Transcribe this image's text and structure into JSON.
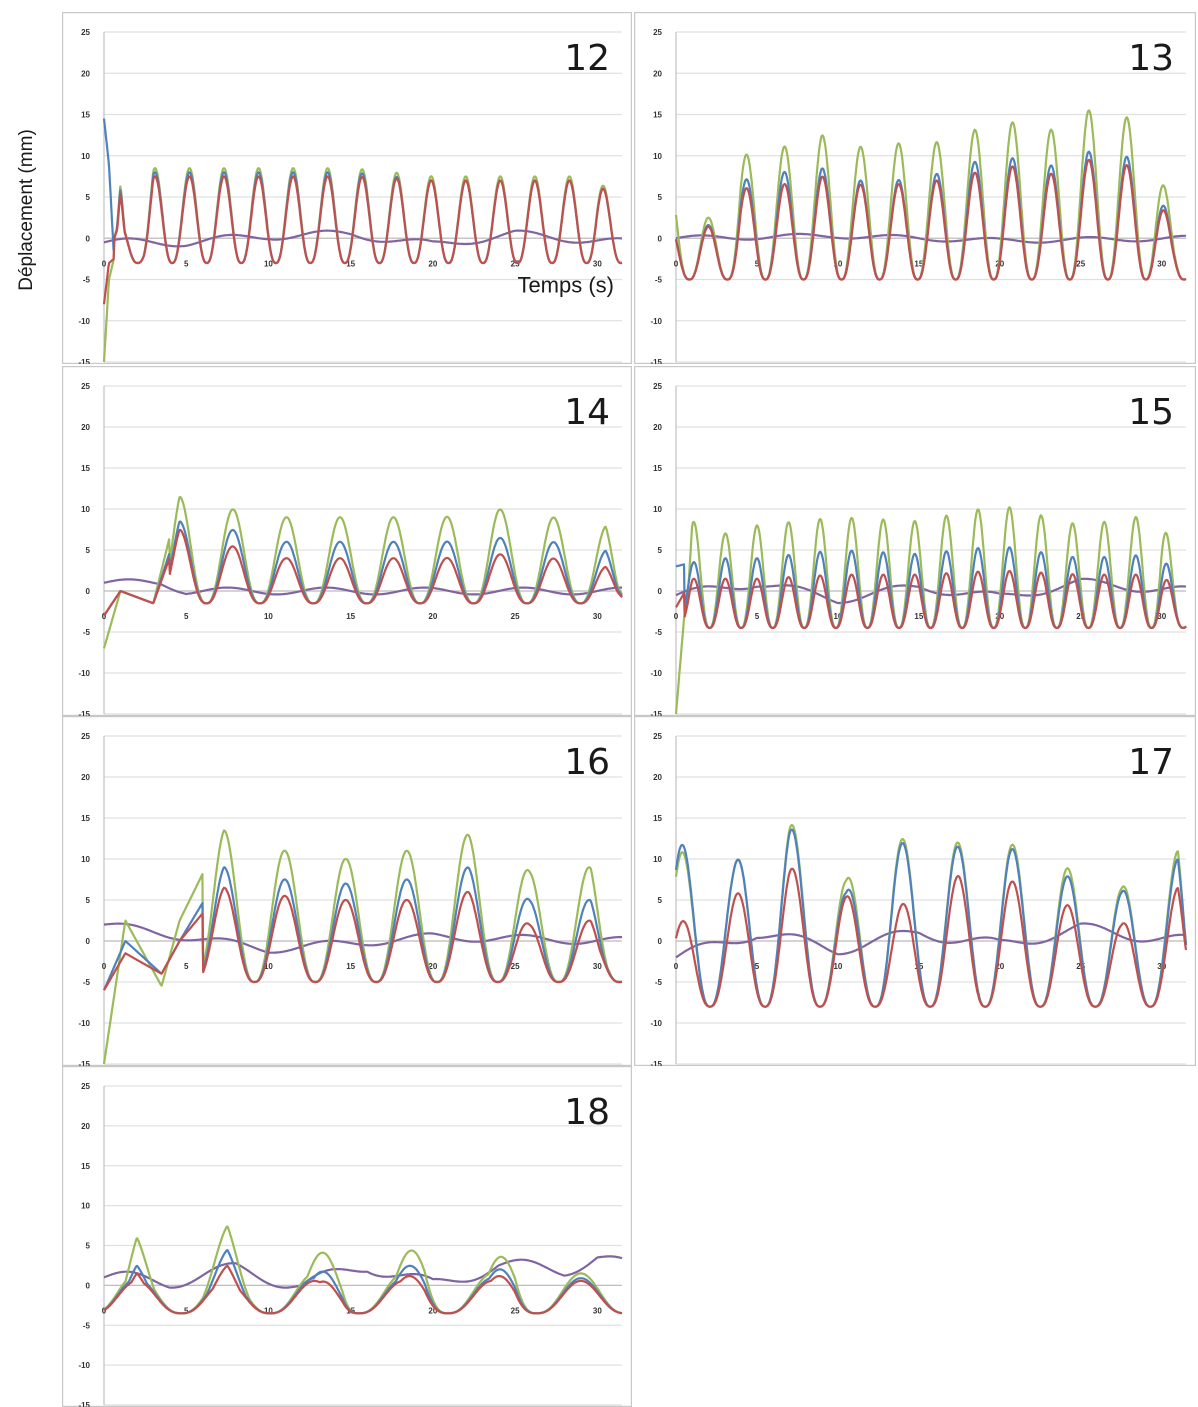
{
  "figure": {
    "ylabel": "Déplacement (mm)",
    "xlabel": "Temps (s)"
  },
  "chart_data": [
    {
      "type": "line",
      "title": "12",
      "xlabel": "Temps (s)",
      "ylabel": "Déplacement (mm)",
      "xlim": [
        0,
        31.5
      ],
      "ylim": [
        -15,
        25
      ],
      "x_ticks": [
        0,
        5,
        10,
        15,
        20,
        25,
        30
      ],
      "y_ticks": [
        -15,
        -10,
        -5,
        0,
        5,
        10,
        15,
        20,
        25
      ],
      "grid": true,
      "legend": "none",
      "signal": {
        "period": 2.1,
        "phase": 1.0,
        "start": 0.6,
        "trough": -3.0,
        "peaks": {
          "blue": 8.0,
          "red": 7.5,
          "green": 8.5
        },
        "purple_amp": 0.8,
        "purple_offset": -0.2
      },
      "series": [
        {
          "color": "#4f81bd",
          "x": [
            0,
            0.3,
            0.6,
            1.0,
            1.5,
            2.0,
            3.0,
            5.0,
            10.0,
            15.0,
            20.0,
            25.0,
            30.0,
            31.5
          ],
          "values": [
            14.5,
            9.0,
            -2.0,
            6.0,
            -2.5,
            -3.0,
            8.0,
            8.0,
            8.0,
            8.0,
            7.0,
            7.0,
            7.0,
            3.0
          ]
        },
        {
          "color": "#c0504d",
          "x": [
            0,
            0.3,
            0.6,
            1.0,
            1.5,
            2.0,
            3.0,
            5.0,
            10.0,
            15.0,
            20.0,
            25.0,
            30.0,
            31.5
          ],
          "values": [
            -8.0,
            -3.0,
            -2.5,
            5.5,
            -2.5,
            -3.0,
            7.5,
            7.5,
            7.5,
            7.5,
            7.0,
            7.0,
            7.0,
            3.0
          ]
        },
        {
          "color": "#9bbb59",
          "x": [
            0,
            0.3,
            0.6,
            1.0,
            1.5,
            2.0,
            3.0,
            5.0,
            10.0,
            15.0,
            20.0,
            25.0,
            30.0,
            31.5
          ],
          "values": [
            -15.0,
            -5.0,
            -2.5,
            6.5,
            -2.5,
            -3.0,
            8.5,
            8.5,
            8.5,
            8.5,
            7.5,
            7.5,
            7.5,
            3.0
          ]
        },
        {
          "color": "#8064a2",
          "x": [
            0,
            5,
            10,
            15,
            20,
            25,
            31.5
          ],
          "values": [
            -0.5,
            -0.5,
            0.3,
            0.5,
            -0.8,
            0.5,
            -0.5
          ]
        }
      ]
    },
    {
      "type": "line",
      "title": "13",
      "xlabel": "",
      "ylabel": "Déplacement (mm)",
      "xlim": [
        0,
        31.5
      ],
      "ylim": [
        -15,
        25
      ],
      "x_ticks": [
        0,
        5,
        10,
        15,
        20,
        25,
        30
      ],
      "y_ticks": [
        -15,
        -10,
        -5,
        0,
        5,
        10,
        15,
        20,
        25
      ],
      "grid": true,
      "legend": "none",
      "signal": {
        "period": 2.35,
        "phase": 2.0,
        "start": 0.0,
        "trough": -5.0,
        "peaks": {
          "blue": 8.0,
          "red": 7.0,
          "green": 12.5
        },
        "purple_amp": 0.5,
        "purple_offset": 0.0
      },
      "series": [
        {
          "color": "#4f81bd",
          "x": [
            0,
            2,
            4,
            6.5,
            9,
            11,
            13.5,
            15.5,
            17.5,
            20,
            22.5,
            24.5,
            27,
            29,
            31.5
          ],
          "values": [
            0,
            -5,
            7,
            8,
            8.5,
            7,
            7,
            7.5,
            8.5,
            10.5,
            8,
            10.5,
            10.5,
            9,
            -2
          ]
        },
        {
          "color": "#c0504d",
          "x": [
            0,
            2,
            4,
            6.5,
            9,
            11,
            13.5,
            15.5,
            17.5,
            20,
            22.5,
            24.5,
            27,
            29,
            31.5
          ],
          "values": [
            0,
            -5,
            6,
            6.5,
            7.5,
            6.5,
            6.5,
            7,
            7,
            9.5,
            7,
            9.5,
            9.5,
            8,
            -2
          ]
        },
        {
          "color": "#9bbb59",
          "x": [
            0,
            2,
            4,
            6.5,
            9,
            11,
            13.5,
            15.5,
            17.5,
            20,
            22.5,
            24.5,
            27,
            29,
            31.5
          ],
          "values": [
            5.5,
            -6,
            10,
            11,
            12.5,
            11,
            11.5,
            11.5,
            12,
            15,
            12,
            15.5,
            15.5,
            13.5,
            -2
          ]
        },
        {
          "color": "#8064a2",
          "x": [
            0,
            10,
            20,
            31.5
          ],
          "values": [
            0,
            0.3,
            -0.3,
            0
          ]
        }
      ]
    },
    {
      "type": "line",
      "title": "14",
      "xlabel": "",
      "ylabel": "Déplacement (mm)",
      "xlim": [
        0,
        31.5
      ],
      "ylim": [
        -15,
        25
      ],
      "x_ticks": [
        0,
        5,
        10,
        15,
        20,
        25,
        30
      ],
      "y_ticks": [
        -15,
        -10,
        -5,
        0,
        5,
        10,
        15,
        20,
        25
      ],
      "grid": true,
      "legend": "none",
      "signal": {
        "period": 3.25,
        "phase": 4.6,
        "start": 4.0,
        "trough": -1.5,
        "peaks": {
          "blue": 6.5,
          "red": 4.0,
          "green": 9.5
        },
        "purple_amp": 0.7,
        "purple_offset": 0.3
      },
      "series": [
        {
          "color": "#4f81bd",
          "x": [
            0,
            1,
            3,
            4.6,
            7.7,
            11,
            14.2,
            17.4,
            20.7,
            23.9,
            27.2,
            30.5,
            31.5
          ],
          "values": [
            -3,
            0,
            -1.5,
            8.5,
            7.5,
            6,
            6,
            6,
            6,
            6.5,
            6,
            5,
            0
          ]
        },
        {
          "color": "#c0504d",
          "x": [
            0,
            1,
            3,
            4.6,
            7.7,
            11,
            14.2,
            17.4,
            20.7,
            23.9,
            27.2,
            30.5,
            31.5
          ],
          "values": [
            -3,
            0,
            -1.5,
            7.5,
            5.5,
            4,
            4,
            4,
            4,
            4.5,
            4,
            3,
            0
          ]
        },
        {
          "color": "#9bbb59",
          "x": [
            0,
            1,
            3,
            4.6,
            7.7,
            11,
            14.2,
            17.4,
            20.7,
            23.9,
            27.2,
            30.5,
            31.5
          ],
          "values": [
            -7,
            0,
            -1.5,
            11.5,
            10,
            9,
            9,
            9,
            9,
            10,
            9,
            8,
            0
          ]
        },
        {
          "color": "#8064a2",
          "x": [
            0,
            3.5,
            5,
            15,
            25,
            31.5
          ],
          "values": [
            1,
            1,
            0,
            0,
            0,
            0
          ]
        }
      ]
    },
    {
      "type": "line",
      "title": "15",
      "xlabel": "",
      "ylabel": "Déplacement (mm)",
      "xlim": [
        0,
        31.5
      ],
      "ylim": [
        -15,
        25
      ],
      "x_ticks": [
        0,
        5,
        10,
        15,
        20,
        25,
        30
      ],
      "y_ticks": [
        -15,
        -10,
        -5,
        0,
        5,
        10,
        15,
        20,
        25
      ],
      "grid": true,
      "legend": "none",
      "signal": {
        "period": 1.95,
        "phase": 1.1,
        "start": 0.5,
        "trough": -4.5,
        "peaks": {
          "blue": 4.0,
          "red": 1.8,
          "green": 8.5
        },
        "purple_amp": 0.9,
        "purple_offset": 0.1
      },
      "series": [
        {
          "color": "#4f81bd",
          "x": [
            0,
            1,
            3,
            5,
            10,
            15,
            20,
            25,
            30,
            31.5
          ],
          "values": [
            3,
            3.5,
            4,
            4,
            5,
            4.5,
            5.5,
            4,
            4.5,
            -1
          ]
        },
        {
          "color": "#c0504d",
          "x": [
            0,
            1,
            3,
            5,
            10,
            15,
            20,
            25,
            30,
            31.5
          ],
          "values": [
            -2,
            1.5,
            1.5,
            1.5,
            2,
            2,
            2.5,
            2,
            2,
            -1
          ]
        },
        {
          "color": "#9bbb59",
          "x": [
            0,
            1,
            3,
            5,
            10,
            15,
            20,
            25,
            30,
            31.5
          ],
          "values": [
            -15,
            8.5,
            7,
            8,
            9,
            8.5,
            10.5,
            8,
            9.5,
            -2.5
          ]
        },
        {
          "color": "#8064a2",
          "x": [
            0,
            5,
            10,
            15,
            20,
            25,
            31.5
          ],
          "values": [
            -0.5,
            1,
            -1,
            0.5,
            -0.8,
            1,
            0
          ]
        }
      ]
    },
    {
      "type": "line",
      "title": "16",
      "xlabel": "",
      "ylabel": "Déplacement (mm)",
      "xlim": [
        0,
        31.5
      ],
      "ylim": [
        -15,
        25
      ],
      "x_ticks": [
        0,
        5,
        10,
        15,
        20,
        25,
        30
      ],
      "y_ticks": [
        -15,
        -10,
        -5,
        0,
        5,
        10,
        15,
        20,
        25
      ],
      "grid": true,
      "legend": "none",
      "signal": {
        "period": 3.7,
        "phase": 7.3,
        "start": 6.0,
        "trough": -5.0,
        "peaks": {
          "blue": 7.5,
          "red": 4.5,
          "green": 11.0
        },
        "purple_amp": 0.8,
        "purple_offset": 0.0
      },
      "series": [
        {
          "color": "#4f81bd",
          "x": [
            0,
            1.3,
            3.5,
            4.6,
            7.3,
            11,
            14.7,
            18.4,
            22.2,
            25.9,
            29.6,
            31.5
          ],
          "values": [
            -6,
            0,
            -4,
            0,
            9,
            7.5,
            7,
            7.5,
            9,
            5,
            5,
            -3
          ]
        },
        {
          "color": "#c0504d",
          "x": [
            0,
            1.3,
            3.5,
            4.6,
            7.3,
            11,
            14.7,
            18.4,
            22.2,
            25.9,
            29.6,
            31.5
          ],
          "values": [
            -6,
            -1.5,
            -4,
            0,
            6.5,
            5.5,
            5,
            5,
            6,
            2,
            2.5,
            -3
          ]
        },
        {
          "color": "#9bbb59",
          "x": [
            0,
            1.3,
            3.5,
            4.6,
            7.3,
            11,
            14.7,
            18.4,
            22.2,
            25.9,
            29.6,
            31.5
          ],
          "values": [
            -15,
            2.5,
            -5.5,
            2.5,
            13.5,
            11,
            10,
            11,
            13,
            8.5,
            9,
            -4
          ]
        },
        {
          "color": "#8064a2",
          "x": [
            0,
            5,
            10,
            20,
            31.5
          ],
          "values": [
            2,
            0.5,
            -1,
            0.5,
            0
          ]
        }
      ]
    },
    {
      "type": "line",
      "title": "17",
      "xlabel": "",
      "ylabel": "Déplacement (mm)",
      "xlim": [
        0,
        31.5
      ],
      "ylim": [
        -15,
        25
      ],
      "x_ticks": [
        0,
        5,
        10,
        15,
        20,
        25,
        30
      ],
      "y_ticks": [
        -15,
        -10,
        -5,
        0,
        5,
        10,
        15,
        20,
        25
      ],
      "grid": true,
      "legend": "none",
      "signal": {
        "period": 3.4,
        "phase": 0.4,
        "start": 0.0,
        "trough": -8.0,
        "peaks": {
          "blue": 9.5,
          "red": 6.0,
          "green": 11.0
        },
        "purple_amp": 1.2,
        "purple_offset": 0.2
      },
      "series": [
        {
          "color": "#4f81bd",
          "x": [
            0,
            3.5,
            7,
            10.5,
            13.5,
            17.5,
            20.5,
            24,
            27.5,
            31,
            31.5
          ],
          "values": [
            12,
            9.5,
            14,
            6,
            12,
            11.5,
            11.5,
            8,
            6,
            10,
            2
          ]
        },
        {
          "color": "#c0504d",
          "x": [
            0,
            3.5,
            7,
            10.5,
            13.5,
            17.5,
            20.5,
            24,
            27.5,
            31,
            31.5
          ],
          "values": [
            2,
            5.5,
            9,
            5.5,
            4,
            8,
            7.5,
            4.5,
            2,
            6.5,
            1
          ]
        },
        {
          "color": "#9bbb59",
          "x": [
            0,
            3.5,
            7,
            10.5,
            13.5,
            17.5,
            20.5,
            24,
            27.5,
            31,
            31.5
          ],
          "values": [
            11,
            9.5,
            14.5,
            7.5,
            12.5,
            12,
            12,
            9,
            6.5,
            11,
            2
          ]
        },
        {
          "color": "#8064a2",
          "x": [
            0,
            5,
            10,
            15,
            20,
            25,
            31.5
          ],
          "values": [
            -2,
            1,
            -1,
            1,
            -0.5,
            1.5,
            0
          ]
        }
      ]
    },
    {
      "type": "line",
      "title": "18",
      "xlabel": "",
      "ylabel": "Déplacement (mm)",
      "xlim": [
        0,
        31.5
      ],
      "ylim": [
        -15,
        25
      ],
      "x_ticks": [
        0,
        5,
        10,
        15,
        20,
        25,
        30
      ],
      "y_ticks": [
        -15,
        -10,
        -5,
        0,
        5,
        10,
        15,
        20,
        25
      ],
      "grid": true,
      "legend": "none",
      "signal": {
        "period": 5.4,
        "phase": 2.0,
        "start": 0.0,
        "trough": -3.5,
        "peaks": {
          "blue": 4.5,
          "red": 2.8,
          "green": 7.5
        },
        "purple_amp": 1.5,
        "purple_offset": 1.0
      },
      "series": [
        {
          "color": "#4f81bd",
          "x": [
            0,
            2,
            4.5,
            7.5,
            10.5,
            14.5,
            16.5,
            19.5,
            22.5,
            25,
            29,
            31.5
          ],
          "values": [
            -4,
            2.5,
            -4,
            4.5,
            -5,
            5.5,
            -2,
            5,
            -1.5,
            5,
            -5,
            0.5
          ]
        },
        {
          "color": "#c0504d",
          "x": [
            0,
            2,
            4.5,
            7.5,
            10.5,
            14.5,
            16.5,
            19.5,
            22.5,
            25,
            29,
            31.5
          ],
          "values": [
            -4,
            1.5,
            -4,
            2.5,
            -5,
            3.5,
            -2,
            3,
            -1.5,
            3.5,
            -5,
            0.5
          ]
        },
        {
          "color": "#9bbb59",
          "x": [
            0,
            2,
            4.5,
            7.5,
            10.5,
            14.5,
            16.5,
            19.5,
            22.5,
            25,
            29,
            31.5
          ],
          "values": [
            -7,
            6,
            -4.5,
            7.5,
            -5.5,
            9.5,
            -3.5,
            8.5,
            -2,
            8,
            -6,
            0.5
          ]
        },
        {
          "color": "#8064a2",
          "x": [
            0,
            4,
            8,
            12,
            16,
            20,
            24,
            28,
            30,
            31.5
          ],
          "values": [
            1,
            0.5,
            2,
            0,
            2.5,
            0,
            2.5,
            2,
            3.5,
            2.5
          ]
        }
      ]
    }
  ]
}
